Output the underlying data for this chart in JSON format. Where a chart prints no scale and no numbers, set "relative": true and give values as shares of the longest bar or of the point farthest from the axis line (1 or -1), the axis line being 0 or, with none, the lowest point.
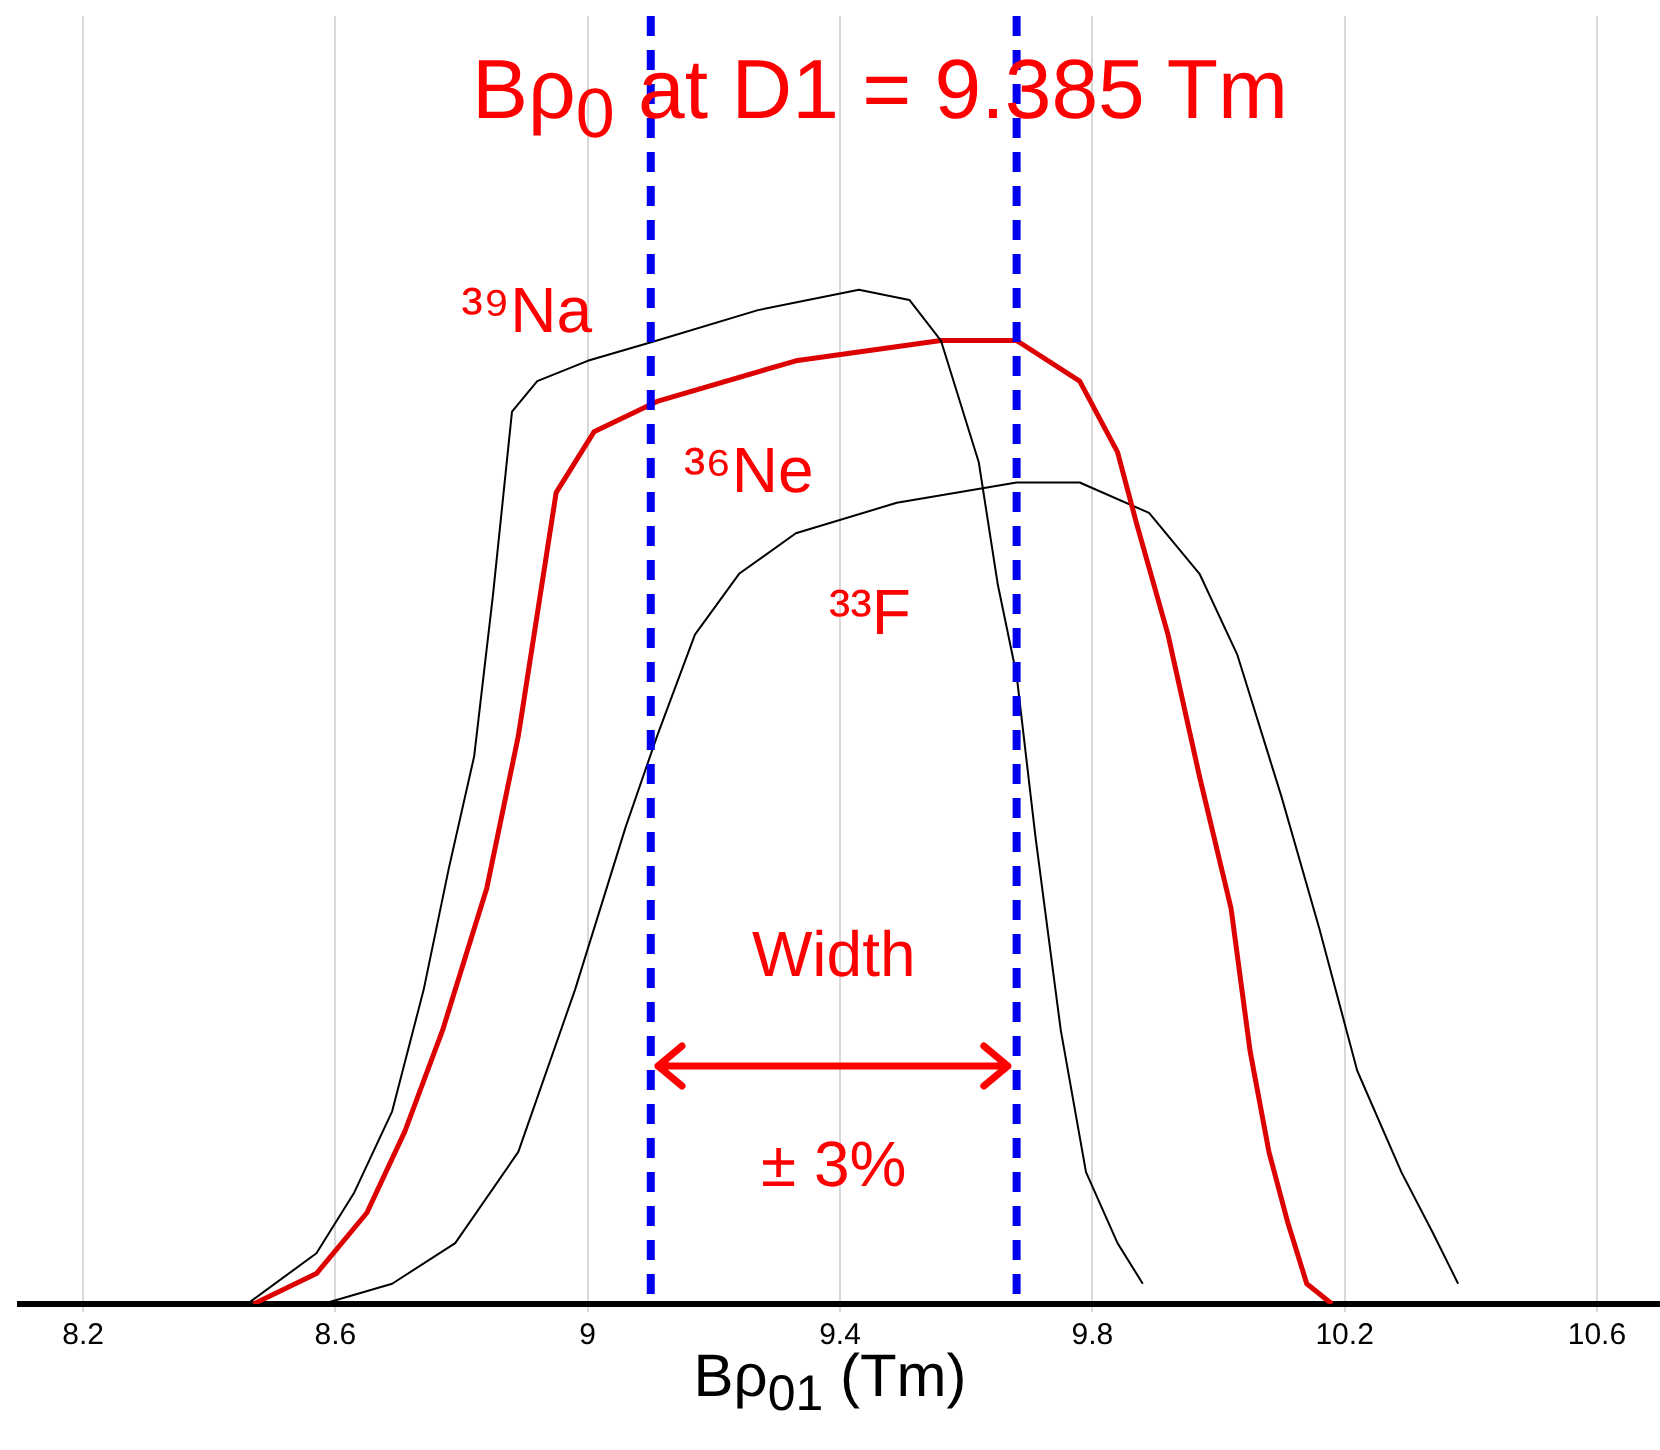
{
  "chart_data": {
    "type": "line",
    "relative": true,
    "title": "Bρ$_{0}$ at D1 = 9.385 Tm",
    "xlabel": "Bρ$_{01}$ (Tm)",
    "xlim": [
      8.1,
      10.7
    ],
    "xticks": [
      8.2,
      8.6,
      9,
      9.4,
      9.8,
      10.2,
      10.6
    ],
    "grid": true,
    "legend": false,
    "marker": "none",
    "line_style": "solid",
    "series": [
      {
        "name": "³⁹Na",
        "color": "#000000",
        "x": [
          8.46,
          8.57,
          8.63,
          8.69,
          8.74,
          8.78,
          8.82,
          8.85,
          8.88,
          8.92,
          9.0,
          9.11,
          9.27,
          9.43,
          9.51,
          9.56,
          9.62,
          9.65,
          9.68,
          9.71,
          9.75,
          9.79,
          9.84,
          9.88
        ],
        "values": [
          0,
          0.05,
          0.11,
          0.19,
          0.31,
          0.43,
          0.54,
          0.7,
          0.88,
          0.91,
          0.93,
          0.95,
          0.98,
          1,
          0.99,
          0.95,
          0.83,
          0.71,
          0.62,
          0.46,
          0.27,
          0.13,
          0.06,
          0.02
        ]
      },
      {
        "name": "³⁶Ne",
        "color": "#dd0000",
        "x": [
          8.47,
          8.57,
          8.65,
          8.71,
          8.77,
          8.84,
          8.89,
          8.95,
          9.01,
          9.11,
          9.33,
          9.56,
          9.68,
          9.78,
          9.84,
          9.87,
          9.92,
          9.97,
          10.02,
          10.05,
          10.08,
          10.11,
          10.14,
          10.18
        ],
        "values": [
          0,
          0.03,
          0.09,
          0.17,
          0.27,
          0.41,
          0.56,
          0.8,
          0.86,
          0.89,
          0.93,
          0.95,
          0.95,
          0.91,
          0.84,
          0.77,
          0.66,
          0.52,
          0.39,
          0.25,
          0.15,
          0.08,
          0.02,
          0
        ]
      },
      {
        "name": "³³F",
        "color": "#000000",
        "x": [
          8.58,
          8.69,
          8.79,
          8.89,
          8.98,
          9.06,
          9.11,
          9.17,
          9.24,
          9.33,
          9.49,
          9.68,
          9.78,
          9.89,
          9.97,
          10.03,
          10.1,
          10.16,
          10.22,
          10.29,
          10.34,
          10.38
        ],
        "values": [
          0,
          0.02,
          0.06,
          0.15,
          0.31,
          0.47,
          0.56,
          0.66,
          0.72,
          0.76,
          0.79,
          0.81,
          0.81,
          0.78,
          0.72,
          0.64,
          0.5,
          0.37,
          0.23,
          0.13,
          0.07,
          0.02
        ]
      }
    ],
    "ref_lines": [
      {
        "axis": "x",
        "value": 9.1,
        "color": "#0000ee",
        "line_style": "dashed"
      },
      {
        "axis": "x",
        "value": 9.68,
        "color": "#0000ee",
        "line_style": "dashed"
      }
    ],
    "annotations": [
      "Width",
      "± 3%"
    ]
  }
}
